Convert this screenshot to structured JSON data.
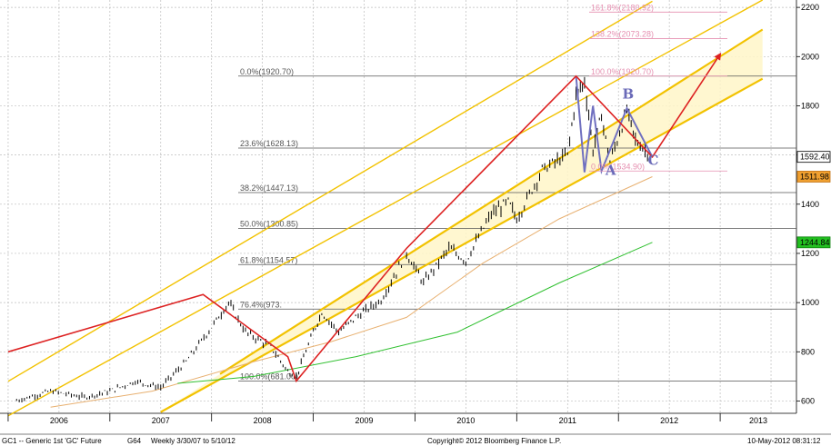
{
  "chart_data": {
    "type": "line",
    "title": "",
    "xlabel": "",
    "ylabel": "",
    "x_ticks": [
      "2006",
      "2007",
      "2008",
      "2009",
      "2010",
      "2011",
      "2012",
      "2013"
    ],
    "ylim": [
      550,
      2230
    ],
    "y_ticks": [
      600,
      800,
      1000,
      1200,
      1400,
      1600,
      1800,
      2000,
      2200
    ],
    "grid": true,
    "price_series": {
      "name": "GC1 -- Generic 1st 'GC' Future",
      "points": [
        [
          "2006-02",
          602
        ],
        [
          "2006-06",
          640
        ],
        [
          "2006-10",
          615
        ],
        [
          "2007-01",
          640
        ],
        [
          "2007-04",
          680
        ],
        [
          "2007-07",
          655
        ],
        [
          "2007-10",
          760
        ],
        [
          "2008-01",
          900
        ],
        [
          "2008-03",
          1000
        ],
        [
          "2008-05",
          880
        ],
        [
          "2008-08",
          820
        ],
        [
          "2008-10",
          720
        ],
        [
          "2008-11",
          700
        ],
        [
          "2009-01",
          880
        ],
        [
          "2009-02",
          960
        ],
        [
          "2009-04",
          880
        ],
        [
          "2009-06",
          940
        ],
        [
          "2009-09",
          1010
        ],
        [
          "2009-12",
          1200
        ],
        [
          "2010-02",
          1080
        ],
        [
          "2010-05",
          1220
        ],
        [
          "2010-07",
          1170
        ],
        [
          "2010-10",
          1360
        ],
        [
          "2010-12",
          1410
        ],
        [
          "2011-01",
          1340
        ],
        [
          "2011-04",
          1540
        ],
        [
          "2011-07",
          1600
        ],
        [
          "2011-08",
          1840
        ],
        [
          "2011-09",
          1900
        ],
        [
          "2011-10",
          1620
        ],
        [
          "2011-11",
          1760
        ],
        [
          "2011-12",
          1570
        ],
        [
          "2012-02",
          1780
        ],
        [
          "2012-03",
          1660
        ],
        [
          "2012-05",
          1592
        ]
      ]
    },
    "ma_short": {
      "points": [
        [
          "2006-06",
          575
        ],
        [
          "2007-06",
          640
        ],
        [
          "2008-06",
          760
        ],
        [
          "2009-03",
          840
        ],
        [
          "2009-12",
          940
        ],
        [
          "2010-09",
          1160
        ],
        [
          "2011-06",
          1340
        ],
        [
          "2012-05",
          1512
        ]
      ]
    },
    "ma_long": {
      "points": [
        [
          "2007-09",
          672
        ],
        [
          "2008-06",
          700
        ],
        [
          "2009-06",
          780
        ],
        [
          "2010-06",
          880
        ],
        [
          "2011-06",
          1080
        ],
        [
          "2012-05",
          1245
        ]
      ]
    },
    "zigzag_red": [
      [
        "2006-01",
        800
      ],
      [
        "2007-12",
        1033
      ],
      [
        "2008-10",
        780
      ],
      [
        "2008-11",
        681
      ],
      [
        "2009-12",
        1220
      ],
      [
        "2011-08",
        1920.7
      ],
      [
        "2012-05",
        1592
      ],
      [
        "2013-01",
        2010
      ]
    ],
    "wave_purple": [
      [
        "2011-08",
        1920.7
      ],
      [
        "2011-09",
        1530
      ],
      [
        "2011-10",
        1800
      ],
      [
        "2011-11",
        1535
      ],
      [
        "2012-02",
        1790
      ],
      [
        "2012-05",
        1592
      ]
    ],
    "wave_labels": [
      {
        "text": "A",
        "x": "2011-12",
        "y": 1520
      },
      {
        "text": "B",
        "x": "2012-02",
        "y": 1830
      },
      {
        "text": "C",
        "x": "2012-05",
        "y": 1560
      }
    ],
    "channels": [
      {
        "name": "outer",
        "lines": [
          [
            [
              "2006-01",
              680
            ],
            [
              "2012-05",
              2225
            ]
          ],
          [
            [
              "2006-01",
              540
            ],
            [
              "2013-06",
              2230
            ]
          ]
        ]
      },
      {
        "name": "inner",
        "lines": [
          [
            [
              "2007-07",
              555
            ],
            [
              "2013-06",
              1910
            ]
          ],
          [
            [
              "2008-02",
              710
            ],
            [
              "2013-06",
              2110
            ]
          ]
        ]
      }
    ],
    "fib_levels": [
      {
        "label": "0.0%(1920.70)",
        "value": 1920.7
      },
      {
        "label": "23.6%(1628.13)",
        "value": 1628.13
      },
      {
        "label": "38.2%(1447.13)",
        "value": 1447.13
      },
      {
        "label": "50.0%(1300.85)",
        "value": 1300.85
      },
      {
        "label": "61.8%(1154.57)",
        "value": 1154.57
      },
      {
        "label": "76.4%(973.",
        "value": 973.56
      },
      {
        "label": "100.0%(681.00)",
        "value": 681.0
      }
    ],
    "fib_extensions": [
      {
        "label": "161.8%(2180.92)",
        "value": 2180.92
      },
      {
        "label": "138.2%(2073.28)",
        "value": 2073.28
      },
      {
        "label": "100.0%(1920.70)",
        "value": 1920.7
      },
      {
        "label": "0.0%(1534.90)",
        "value": 1534.9
      }
    ],
    "price_badges": [
      {
        "label": "1592.40",
        "value": 1592.4,
        "color": "#ffffff",
        "text_color": "#000000",
        "border": "#000000"
      },
      {
        "label": "1511.98",
        "value": 1511.98,
        "color": "#f0a030",
        "text_color": "#000000",
        "border": "#c07010"
      },
      {
        "label": "1244.84",
        "value": 1244.84,
        "color": "#22c020",
        "text_color": "#000000",
        "border": "#108010"
      }
    ],
    "colors": {
      "price": "#000000",
      "zigzag": "#dd2222",
      "waves": "#7070c0",
      "channel": "#f2c200",
      "channel_fill": "#fff6c8",
      "ma_short": "#e8b070",
      "ma_long": "#30c030",
      "fib": "#555555",
      "fib_ext": "#e58fb0"
    }
  },
  "footer": {
    "left": "GC1 -- Generic 1st 'GC' Future",
    "mid1": "G64",
    "mid2": "Weekly  3/30/07 to 5/10/12",
    "center": "Copyright© 2012 Bloomberg Finance L.P.",
    "right": "10-May-2012 08:31:12"
  }
}
